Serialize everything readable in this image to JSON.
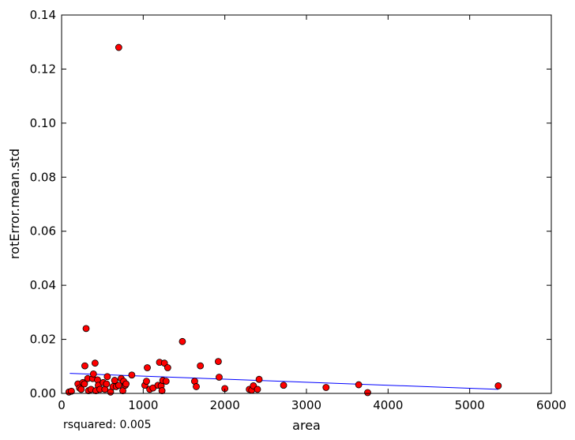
{
  "chart_data": {
    "type": "scatter",
    "xlabel": "area",
    "ylabel": "rotError.mean.std",
    "xlim": [
      0,
      6000
    ],
    "ylim": [
      0,
      0.14
    ],
    "xticks": [
      "0",
      "1000",
      "2000",
      "3000",
      "4000",
      "5000",
      "6000"
    ],
    "yticks": [
      "0.00",
      "0.02",
      "0.04",
      "0.06",
      "0.08",
      "0.10",
      "0.12",
      "0.14"
    ],
    "grid": false,
    "annotation": "rsquared: 0.005",
    "marker_color": "#ff0000",
    "line_color": "#0000ff",
    "fit_line": {
      "x": [
        100,
        5350
      ],
      "y": [
        0.0074,
        0.0015
      ]
    },
    "points": [
      [
        90,
        0.0005
      ],
      [
        120,
        0.0008
      ],
      [
        700,
        0.128
      ],
      [
        200,
        0.0035
      ],
      [
        220,
        0.002
      ],
      [
        240,
        0.0015
      ],
      [
        260,
        0.004
      ],
      [
        280,
        0.0035
      ],
      [
        285,
        0.0102
      ],
      [
        300,
        0.024
      ],
      [
        320,
        0.0055
      ],
      [
        330,
        0.001
      ],
      [
        360,
        0.0015
      ],
      [
        380,
        0.0055
      ],
      [
        390,
        0.0072
      ],
      [
        410,
        0.0112
      ],
      [
        420,
        0.001
      ],
      [
        440,
        0.005
      ],
      [
        450,
        0.003
      ],
      [
        470,
        0.0015
      ],
      [
        510,
        0.004
      ],
      [
        530,
        0.0015
      ],
      [
        550,
        0.0035
      ],
      [
        560,
        0.0062
      ],
      [
        600,
        0.0005
      ],
      [
        630,
        0.0025
      ],
      [
        650,
        0.0048
      ],
      [
        670,
        0.0025
      ],
      [
        700,
        0.003
      ],
      [
        730,
        0.0055
      ],
      [
        750,
        0.001
      ],
      [
        760,
        0.0045
      ],
      [
        780,
        0.003
      ],
      [
        790,
        0.0035
      ],
      [
        860,
        0.0068
      ],
      [
        1020,
        0.003
      ],
      [
        1040,
        0.0045
      ],
      [
        1050,
        0.0095
      ],
      [
        1080,
        0.0015
      ],
      [
        1120,
        0.002
      ],
      [
        1180,
        0.003
      ],
      [
        1200,
        0.0115
      ],
      [
        1220,
        0.0028
      ],
      [
        1230,
        0.001
      ],
      [
        1240,
        0.0048
      ],
      [
        1260,
        0.0112
      ],
      [
        1280,
        0.0045
      ],
      [
        1300,
        0.0095
      ],
      [
        1480,
        0.0192
      ],
      [
        1630,
        0.0045
      ],
      [
        1650,
        0.0025
      ],
      [
        1700,
        0.0102
      ],
      [
        1920,
        0.0118
      ],
      [
        1930,
        0.006
      ],
      [
        2000,
        0.0018
      ],
      [
        2300,
        0.0015
      ],
      [
        2330,
        0.0012
      ],
      [
        2350,
        0.0028
      ],
      [
        2400,
        0.0015
      ],
      [
        2420,
        0.0052
      ],
      [
        2720,
        0.003
      ],
      [
        3240,
        0.0022
      ],
      [
        3640,
        0.0032
      ],
      [
        3750,
        0.0003
      ],
      [
        5350,
        0.0028
      ]
    ]
  }
}
